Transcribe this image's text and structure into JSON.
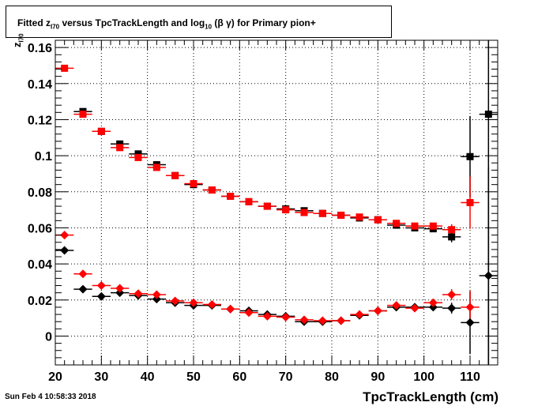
{
  "title": {
    "prefix": "Fitted  z",
    "sub1": "I70",
    "middle": "  versus TpcTrackLength and log",
    "sub2": "10",
    "suffix": " (β γ) for Primary pion+"
  },
  "ylabel": {
    "main": "z",
    "sub": "I70"
  },
  "xlabel": "TpcTrackLength (cm)",
  "datestamp": "Sun Feb  4 10:58:33 2018",
  "chart_data": {
    "type": "scatter",
    "xlim": [
      20,
      116
    ],
    "ylim": [
      -0.016,
      0.164
    ],
    "xticks": [
      20,
      30,
      40,
      50,
      60,
      70,
      80,
      90,
      100,
      110
    ],
    "yticks": [
      0,
      0.02,
      0.04,
      0.06,
      0.08,
      0.1,
      0.12,
      0.14,
      0.16
    ],
    "ytick_labels": [
      "0",
      "0.02",
      "0.04",
      "0.06",
      "0.08",
      "0.1",
      "0.12",
      "0.14",
      "0.16"
    ],
    "grid": true,
    "x_halfwidth": 2,
    "series": [
      {
        "marker": "square",
        "color": "#000000",
        "points": [
          {
            "x": 26,
            "y": 0.1245,
            "err": 0.001
          },
          {
            "x": 30,
            "y": 0.1135,
            "err": 0.001
          },
          {
            "x": 34,
            "y": 0.1065,
            "err": 0.001
          },
          {
            "x": 38,
            "y": 0.101,
            "err": 0.001
          },
          {
            "x": 42,
            "y": 0.095,
            "err": 0.001
          },
          {
            "x": 46,
            "y": 0.089,
            "err": 0.001
          },
          {
            "x": 50,
            "y": 0.084,
            "err": 0.001
          },
          {
            "x": 54,
            "y": 0.081,
            "err": 0.001
          },
          {
            "x": 58,
            "y": 0.0775,
            "err": 0.001
          },
          {
            "x": 62,
            "y": 0.0745,
            "err": 0.001
          },
          {
            "x": 66,
            "y": 0.072,
            "err": 0.001
          },
          {
            "x": 70,
            "y": 0.0705,
            "err": 0.001
          },
          {
            "x": 74,
            "y": 0.0695,
            "err": 0.001
          },
          {
            "x": 78,
            "y": 0.068,
            "err": 0.001
          },
          {
            "x": 82,
            "y": 0.067,
            "err": 0.001
          },
          {
            "x": 86,
            "y": 0.0655,
            "err": 0.001
          },
          {
            "x": 90,
            "y": 0.0645,
            "err": 0.001
          },
          {
            "x": 94,
            "y": 0.0615,
            "err": 0.001
          },
          {
            "x": 98,
            "y": 0.06,
            "err": 0.001
          },
          {
            "x": 102,
            "y": 0.0595,
            "err": 0.0015
          },
          {
            "x": 106,
            "y": 0.055,
            "err": 0.003
          },
          {
            "x": 110,
            "y": 0.0995,
            "err": 0.0225
          },
          {
            "x": 114,
            "y": 0.123,
            "err": 0.16
          }
        ]
      },
      {
        "marker": "square",
        "color": "#ff0000",
        "points": [
          {
            "x": 22,
            "y": 0.1485,
            "err": 0.001
          },
          {
            "x": 26,
            "y": 0.123,
            "err": 0.001
          },
          {
            "x": 30,
            "y": 0.1135,
            "err": 0.001
          },
          {
            "x": 34,
            "y": 0.1045,
            "err": 0.001
          },
          {
            "x": 38,
            "y": 0.099,
            "err": 0.001
          },
          {
            "x": 42,
            "y": 0.0935,
            "err": 0.001
          },
          {
            "x": 46,
            "y": 0.089,
            "err": 0.001
          },
          {
            "x": 50,
            "y": 0.0845,
            "err": 0.001
          },
          {
            "x": 54,
            "y": 0.081,
            "err": 0.001
          },
          {
            "x": 58,
            "y": 0.0775,
            "err": 0.001
          },
          {
            "x": 62,
            "y": 0.0745,
            "err": 0.001
          },
          {
            "x": 66,
            "y": 0.072,
            "err": 0.001
          },
          {
            "x": 70,
            "y": 0.07,
            "err": 0.001
          },
          {
            "x": 74,
            "y": 0.0685,
            "err": 0.001
          },
          {
            "x": 78,
            "y": 0.068,
            "err": 0.001
          },
          {
            "x": 82,
            "y": 0.067,
            "err": 0.001
          },
          {
            "x": 86,
            "y": 0.066,
            "err": 0.001
          },
          {
            "x": 90,
            "y": 0.0645,
            "err": 0.001
          },
          {
            "x": 94,
            "y": 0.0625,
            "err": 0.001
          },
          {
            "x": 98,
            "y": 0.061,
            "err": 0.001
          },
          {
            "x": 102,
            "y": 0.061,
            "err": 0.0015
          },
          {
            "x": 106,
            "y": 0.059,
            "err": 0.003
          },
          {
            "x": 110,
            "y": 0.074,
            "err": 0.0145
          }
        ]
      },
      {
        "marker": "diamond",
        "color": "#000000",
        "points": [
          {
            "x": 22,
            "y": 0.0475,
            "err": 0.001
          },
          {
            "x": 26,
            "y": 0.026,
            "err": 0.001
          },
          {
            "x": 30,
            "y": 0.022,
            "err": 0.001
          },
          {
            "x": 34,
            "y": 0.024,
            "err": 0.001
          },
          {
            "x": 38,
            "y": 0.0225,
            "err": 0.001
          },
          {
            "x": 42,
            "y": 0.0205,
            "err": 0.001
          },
          {
            "x": 46,
            "y": 0.0185,
            "err": 0.001
          },
          {
            "x": 50,
            "y": 0.017,
            "err": 0.001
          },
          {
            "x": 54,
            "y": 0.017,
            "err": 0.001
          },
          {
            "x": 58,
            "y": 0.015,
            "err": 0.001
          },
          {
            "x": 62,
            "y": 0.014,
            "err": 0.001
          },
          {
            "x": 66,
            "y": 0.012,
            "err": 0.001
          },
          {
            "x": 70,
            "y": 0.011,
            "err": 0.001
          },
          {
            "x": 74,
            "y": 0.008,
            "err": 0.001
          },
          {
            "x": 78,
            "y": 0.008,
            "err": 0.001
          },
          {
            "x": 82,
            "y": 0.0085,
            "err": 0.001
          },
          {
            "x": 86,
            "y": 0.0115,
            "err": 0.001
          },
          {
            "x": 90,
            "y": 0.014,
            "err": 0.001
          },
          {
            "x": 94,
            "y": 0.016,
            "err": 0.001
          },
          {
            "x": 98,
            "y": 0.016,
            "err": 0.001
          },
          {
            "x": 102,
            "y": 0.016,
            "err": 0.0015
          },
          {
            "x": 106,
            "y": 0.0155,
            "err": 0.003
          },
          {
            "x": 110,
            "y": 0.0075,
            "err": 0.0175
          },
          {
            "x": 114,
            "y": 0.0335,
            "err": 0.06
          }
        ]
      },
      {
        "marker": "diamond",
        "color": "#ff0000",
        "points": [
          {
            "x": 22,
            "y": 0.056,
            "err": 0.001
          },
          {
            "x": 26,
            "y": 0.0345,
            "err": 0.001
          },
          {
            "x": 30,
            "y": 0.028,
            "err": 0.001
          },
          {
            "x": 34,
            "y": 0.0265,
            "err": 0.001
          },
          {
            "x": 38,
            "y": 0.0235,
            "err": 0.001
          },
          {
            "x": 42,
            "y": 0.023,
            "err": 0.001
          },
          {
            "x": 46,
            "y": 0.0195,
            "err": 0.001
          },
          {
            "x": 50,
            "y": 0.0185,
            "err": 0.001
          },
          {
            "x": 54,
            "y": 0.0175,
            "err": 0.001
          },
          {
            "x": 58,
            "y": 0.015,
            "err": 0.001
          },
          {
            "x": 62,
            "y": 0.013,
            "err": 0.001
          },
          {
            "x": 66,
            "y": 0.011,
            "err": 0.001
          },
          {
            "x": 70,
            "y": 0.0105,
            "err": 0.001
          },
          {
            "x": 74,
            "y": 0.009,
            "err": 0.001
          },
          {
            "x": 78,
            "y": 0.0085,
            "err": 0.001
          },
          {
            "x": 82,
            "y": 0.0085,
            "err": 0.001
          },
          {
            "x": 86,
            "y": 0.012,
            "err": 0.001
          },
          {
            "x": 90,
            "y": 0.014,
            "err": 0.001
          },
          {
            "x": 94,
            "y": 0.017,
            "err": 0.001
          },
          {
            "x": 98,
            "y": 0.0155,
            "err": 0.001
          },
          {
            "x": 102,
            "y": 0.0185,
            "err": 0.0015
          },
          {
            "x": 106,
            "y": 0.023,
            "err": 0.003
          },
          {
            "x": 110,
            "y": 0.016,
            "err": 0.009
          }
        ]
      }
    ]
  }
}
